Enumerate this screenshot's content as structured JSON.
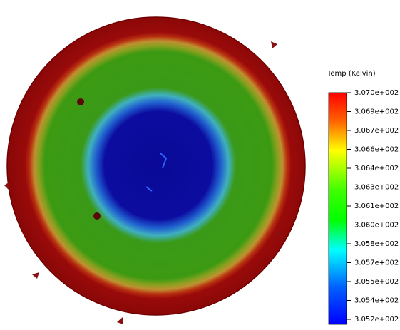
{
  "legend": {
    "title": "Temp (Kelvin)",
    "labels": [
      "3.070e+002",
      "3.069e+002",
      "3.067e+002",
      "3.066e+002",
      "3.064e+002",
      "3.063e+002",
      "3.061e+002",
      "3.060e+002",
      "3.058e+002",
      "3.057e+002",
      "3.055e+002",
      "3.054e+002",
      "3.052e+002"
    ]
  }
}
